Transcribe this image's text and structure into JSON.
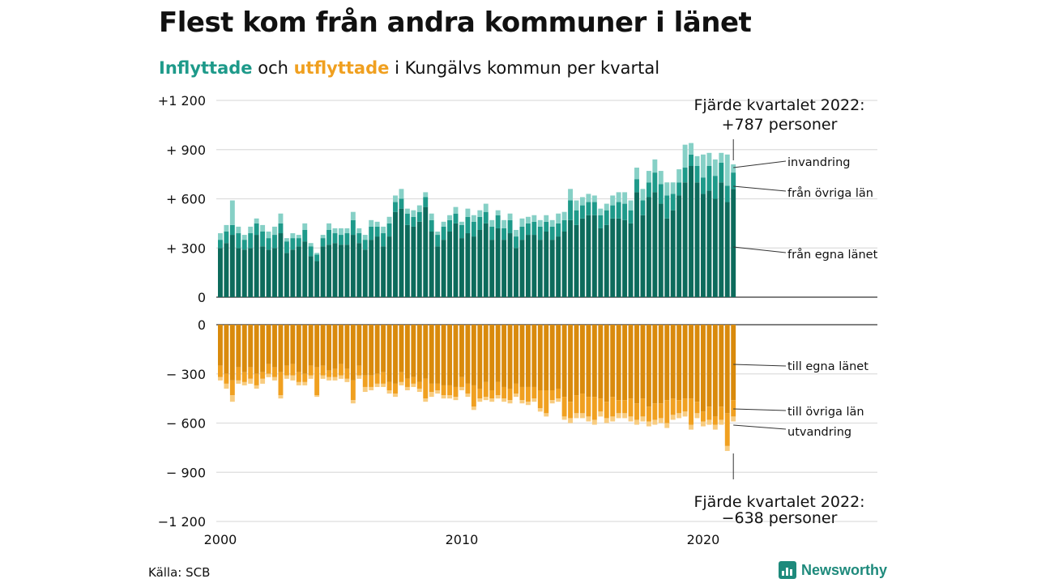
{
  "title": "Flest kom från andra kommuner i länet",
  "subtitle": {
    "part1": "Inflyttade",
    "part2": " och ",
    "part3": "utflyttade",
    "part4": " i Kungälvs kommun per kvartal"
  },
  "source": "Källa: SCB",
  "brand": "Newsworthy",
  "colors": {
    "in_own": "#0d6b5c",
    "in_other": "#1e9a8a",
    "in_immig": "#86d0c6",
    "out_own": "#d98a0c",
    "out_other": "#f0a020",
    "out_emig": "#f8cc80",
    "grid": "#dddddd"
  },
  "chart_data": {
    "type": "bar",
    "stacked": true,
    "start_year": 2000,
    "quarters_per_year": 4,
    "x_ticks": [
      "2000",
      "2010",
      "2020"
    ],
    "upper_y_ticks": [
      "+1 200",
      "+  900",
      "+  600",
      "+  300",
      "0"
    ],
    "lower_y_ticks": [
      "0",
      "−  300",
      "−  600",
      "−  900",
      "−1 200"
    ],
    "ylim_upper": [
      0,
      1200
    ],
    "ylim_lower": [
      -1200,
      0
    ],
    "annotation_top": [
      "Fjärde kvartalet 2022:",
      "+787 personer"
    ],
    "annotation_bottom": [
      "Fjärde kvartalet 2022:",
      "−638 personer"
    ],
    "labels_in": [
      "invandring",
      "från övriga län",
      "från egna länet"
    ],
    "labels_out": [
      "till egna länet",
      "till övriga län",
      "utvandring"
    ],
    "series_in": [
      {
        "name": "från egna länet",
        "values": [
          300,
          330,
          380,
          300,
          290,
          300,
          380,
          310,
          290,
          300,
          390,
          270,
          290,
          310,
          340,
          250,
          220,
          310,
          320,
          330,
          320,
          320,
          380,
          330,
          290,
          350,
          370,
          310,
          370,
          520,
          540,
          440,
          430,
          460,
          550,
          400,
          310,
          350,
          400,
          450,
          360,
          390,
          370,
          410,
          450,
          350,
          420,
          350,
          390,
          300,
          350,
          380,
          380,
          350,
          400,
          350,
          370,
          400,
          470,
          440,
          480,
          500,
          500,
          420,
          440,
          480,
          480,
          470,
          450,
          640,
          500,
          610,
          640,
          570,
          480,
          530,
          620,
          700,
          800,
          700,
          630,
          650,
          600,
          700,
          580,
          660
        ]
      },
      {
        "name": "från övriga län",
        "values": [
          50,
          70,
          60,
          90,
          60,
          90,
          70,
          90,
          70,
          80,
          60,
          70,
          70,
          50,
          70,
          60,
          40,
          50,
          90,
          60,
          60,
          70,
          90,
          60,
          60,
          80,
          60,
          80,
          80,
          60,
          60,
          70,
          60,
          60,
          60,
          70,
          70,
          80,
          70,
          60,
          80,
          100,
          90,
          80,
          70,
          80,
          80,
          70,
          80,
          70,
          80,
          70,
          80,
          80,
          60,
          80,
          80,
          70,
          120,
          90,
          80,
          80,
          80,
          80,
          90,
          80,
          100,
          100,
          80,
          80,
          90,
          90,
          120,
          120,
          140,
          100,
          80,
          90,
          70,
          100,
          100,
          150,
          140,
          120,
          100,
          100
        ]
      },
      {
        "name": "invandring",
        "values": [
          40,
          40,
          150,
          40,
          30,
          40,
          30,
          40,
          40,
          50,
          60,
          20,
          30,
          20,
          40,
          20,
          10,
          20,
          40,
          30,
          40,
          30,
          50,
          30,
          30,
          40,
          30,
          40,
          40,
          40,
          60,
          30,
          40,
          40,
          30,
          40,
          20,
          30,
          30,
          40,
          20,
          50,
          40,
          40,
          50,
          40,
          30,
          50,
          40,
          40,
          50,
          40,
          40,
          40,
          40,
          40,
          60,
          50,
          70,
          60,
          50,
          50,
          40,
          40,
          40,
          60,
          60,
          70,
          60,
          70,
          70,
          70,
          80,
          80,
          80,
          70,
          80,
          140,
          70,
          60,
          140,
          80,
          100,
          60,
          190,
          50
        ]
      }
    ],
    "series_out": [
      {
        "name": "till egna länet",
        "values": [
          250,
          300,
          340,
          260,
          290,
          260,
          300,
          290,
          240,
          260,
          290,
          250,
          240,
          290,
          300,
          250,
          260,
          250,
          280,
          270,
          240,
          270,
          340,
          250,
          310,
          310,
          300,
          290,
          350,
          360,
          290,
          330,
          320,
          350,
          330,
          360,
          360,
          370,
          370,
          380,
          320,
          360,
          370,
          390,
          350,
          400,
          350,
          380,
          390,
          360,
          380,
          380,
          380,
          400,
          400,
          400,
          390,
          440,
          470,
          430,
          420,
          440,
          440,
          450,
          470,
          440,
          460,
          460,
          450,
          480,
          450,
          500,
          480,
          480,
          460,
          450,
          460,
          450,
          450,
          470,
          530,
          500,
          560,
          500,
          540,
          460
        ]
      },
      {
        "name": "till övriga län",
        "values": [
          70,
          60,
          90,
          80,
          60,
          70,
          70,
          40,
          60,
          60,
          140,
          60,
          70,
          60,
          50,
          60,
          170,
          60,
          40,
          50,
          70,
          60,
          120,
          60,
          70,
          70,
          60,
          70,
          50,
          60,
          60,
          50,
          40,
          40,
          120,
          50,
          40,
          60,
          60,
          60,
          60,
          60,
          130,
          60,
          90,
          50,
          80,
          70,
          70,
          60,
          80,
          90,
          70,
          110,
          140,
          60,
          60,
          120,
          100,
          110,
          120,
          120,
          140,
          80,
          100,
          120,
          80,
          80,
          110,
          100,
          110,
          90,
          100,
          90,
          140,
          100,
          80,
          80,
          160,
          70,
          60,
          80,
          50,
          80,
          200,
          100
        ]
      },
      {
        "name": "utvandring",
        "values": [
          20,
          30,
          40,
          20,
          20,
          30,
          20,
          30,
          20,
          20,
          20,
          20,
          30,
          20,
          20,
          20,
          10,
          20,
          20,
          20,
          20,
          20,
          20,
          20,
          30,
          20,
          20,
          20,
          20,
          20,
          20,
          20,
          20,
          20,
          20,
          30,
          20,
          20,
          20,
          20,
          20,
          20,
          20,
          20,
          20,
          20,
          20,
          20,
          20,
          20,
          20,
          20,
          20,
          20,
          20,
          20,
          20,
          20,
          30,
          30,
          30,
          30,
          30,
          30,
          30,
          30,
          30,
          30,
          30,
          30,
          30,
          30,
          30,
          30,
          30,
          30,
          30,
          30,
          30,
          30,
          30,
          30,
          30,
          30,
          30,
          30
        ]
      }
    ]
  }
}
